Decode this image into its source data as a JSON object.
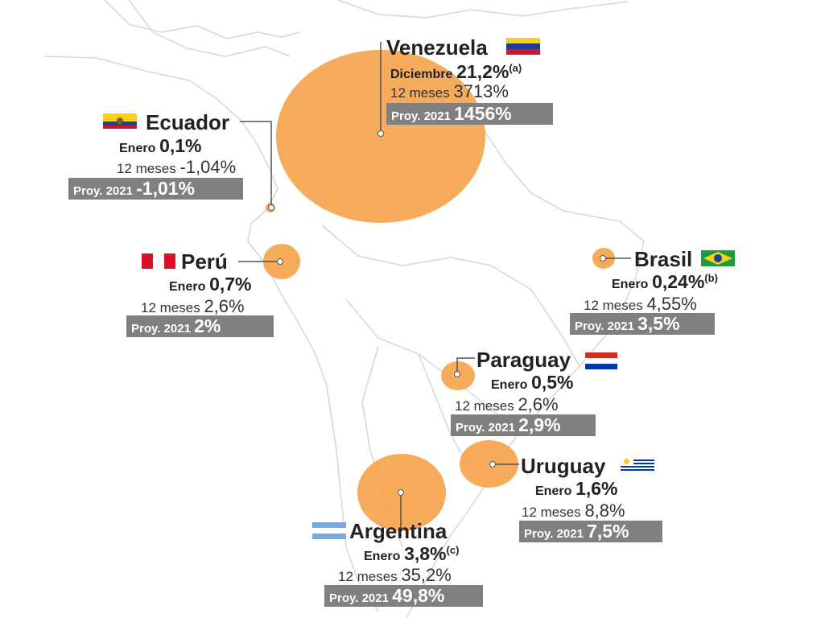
{
  "colors": {
    "bubble": "#f4a751",
    "proy_bg": "#808080",
    "map_line": "#d8d8d8"
  },
  "countries": [
    {
      "name": "Venezuela",
      "period_label": "Diciembre",
      "period_value": "21,2%",
      "note": "(a)",
      "m12_label": "12 meses",
      "m12_value": "3713%",
      "proy_label": "Proy. 2021",
      "proy_value": "1456%",
      "flag": "venezuela-flag-icon"
    },
    {
      "name": "Ecuador",
      "period_label": "Enero",
      "period_value": "0,1%",
      "note": "",
      "m12_label": "12 meses",
      "m12_value": "-1,04%",
      "proy_label": "Proy. 2021",
      "proy_value": "-1,01%",
      "flag": "ecuador-flag-icon"
    },
    {
      "name": "Perú",
      "period_label": "Enero",
      "period_value": "0,7%",
      "note": "",
      "m12_label": "12 meses",
      "m12_value": "2,6%",
      "proy_label": "Proy. 2021",
      "proy_value": "2%",
      "flag": "peru-flag-icon"
    },
    {
      "name": "Brasil",
      "period_label": "Enero",
      "period_value": "0,24%",
      "note": "(b)",
      "m12_label": "12 meses",
      "m12_value": "4,55%",
      "proy_label": "Proy. 2021",
      "proy_value": "3,5%",
      "flag": "brasil-flag-icon"
    },
    {
      "name": "Paraguay",
      "period_label": "Enero",
      "period_value": "0,5%",
      "note": "",
      "m12_label": "12 meses",
      "m12_value": "2,6%",
      "proy_label": "Proy. 2021",
      "proy_value": "2,9%",
      "flag": "paraguay-flag-icon"
    },
    {
      "name": "Uruguay",
      "period_label": "Enero",
      "period_value": "1,6%",
      "note": "",
      "m12_label": "12 meses",
      "m12_value": "8,8%",
      "proy_label": "Proy. 2021",
      "proy_value": "7,5%",
      "flag": "uruguay-flag-icon"
    },
    {
      "name": "Argentina",
      "period_label": "Enero",
      "period_value": "3,8%",
      "note": "(c)",
      "m12_label": "12 meses",
      "m12_value": "35,2%",
      "proy_label": "Proy. 2021",
      "proy_value": "49,8%",
      "flag": "argentina-flag-icon"
    }
  ]
}
